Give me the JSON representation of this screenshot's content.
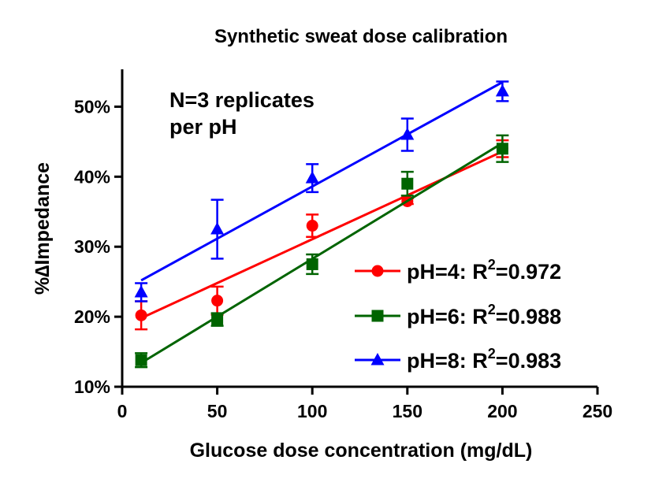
{
  "chart_data": {
    "type": "scatter",
    "title": "Synthetic sweat dose calibration",
    "xlabel": "Glucose dose concentration (mg/dL)",
    "ylabel": "%∆Impedance",
    "xlim": [
      0,
      250
    ],
    "ylim": [
      10,
      55
    ],
    "xticks": [
      0,
      50,
      100,
      150,
      200,
      250
    ],
    "xtick_labels": [
      "0",
      "50",
      "100",
      "150",
      "200",
      "250"
    ],
    "yticks": [
      10,
      20,
      30,
      40,
      50
    ],
    "ytick_labels": [
      "10%",
      "20%",
      "30%",
      "40%",
      "50%"
    ],
    "annotation": {
      "line1": "N=3 replicates",
      "line2": "per pH"
    },
    "legend_position": "lower-right",
    "grid": false,
    "series": [
      {
        "name": "pH=4",
        "r2_label": "R",
        "r2_sup": "2",
        "r2_value": "=0.972",
        "color": "#ff0000",
        "marker": "circle",
        "x": [
          10,
          50,
          100,
          150,
          200
        ],
        "y": [
          20.2,
          22.3,
          33.0,
          36.5,
          44.0
        ],
        "err": [
          2.0,
          2.0,
          1.6,
          0.4,
          1.2
        ],
        "fit": [
          [
            10,
            19.8
          ],
          [
            200,
            43.6
          ]
        ]
      },
      {
        "name": "pH=6",
        "r2_label": "R",
        "r2_sup": "2",
        "r2_value": "=0.988",
        "color": "#006400",
        "marker": "square",
        "x": [
          10,
          50,
          100,
          150,
          200
        ],
        "y": [
          13.8,
          19.6,
          27.5,
          39.0,
          44.0
        ],
        "err": [
          1.0,
          0.9,
          1.4,
          1.7,
          1.9
        ],
        "fit": [
          [
            10,
            13.4
          ],
          [
            200,
            44.8
          ]
        ]
      },
      {
        "name": "pH=8",
        "r2_label": "R",
        "r2_sup": "2",
        "r2_value": "=0.983",
        "color": "#0000ff",
        "marker": "triangle",
        "x": [
          10,
          50,
          100,
          150,
          200
        ],
        "y": [
          23.5,
          32.5,
          39.8,
          46.0,
          52.2
        ],
        "err": [
          1.3,
          4.2,
          2.0,
          2.3,
          1.4
        ],
        "fit": [
          [
            10,
            25.2
          ],
          [
            200,
            53.5
          ]
        ]
      }
    ]
  }
}
